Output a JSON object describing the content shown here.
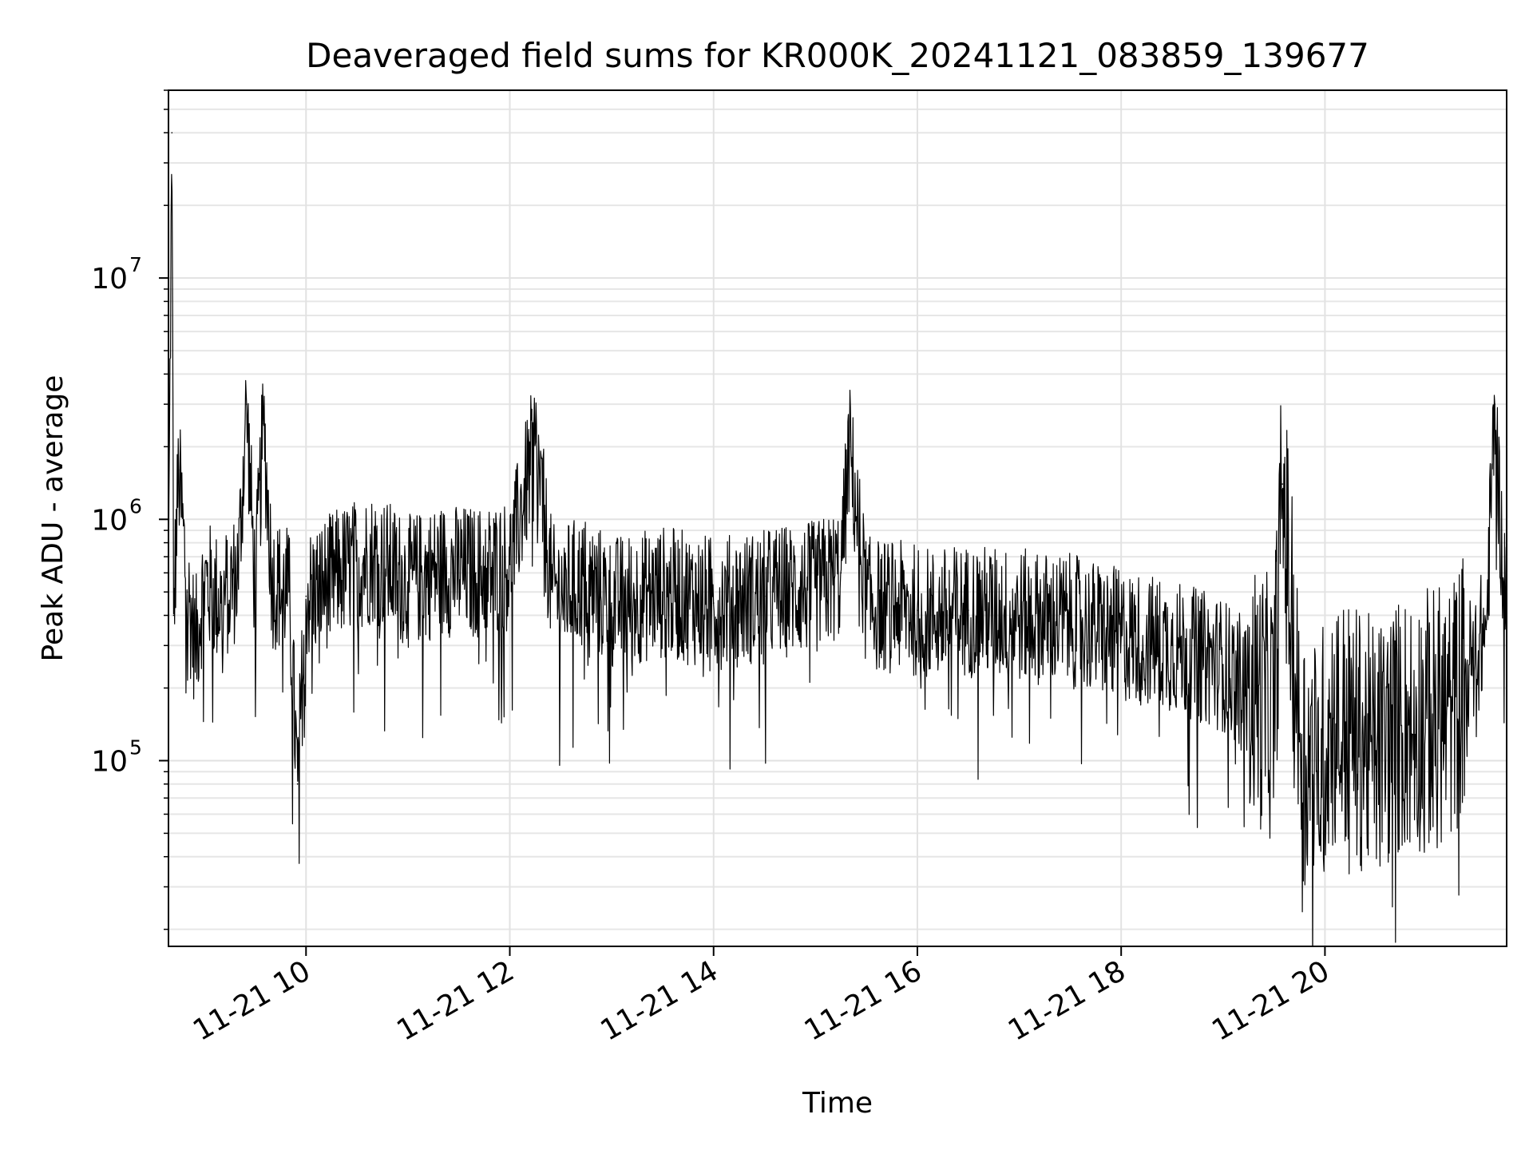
{
  "chart_data": {
    "type": "line",
    "title": "Deaveraged field sums for KR000K_20241121_083859_139677",
    "xlabel": "Time",
    "ylabel": "Peak ADU - average",
    "y_scale": "log",
    "grid": true,
    "legend": "none",
    "x_range": [
      "2024-11-21 08:39",
      "2024-11-21 21:47"
    ],
    "ylim": [
      17000,
      60000000
    ],
    "x_ticks": [
      {
        "t": "2024-11-21 10:00",
        "label": "11-21 10"
      },
      {
        "t": "2024-11-21 12:00",
        "label": "11-21 12"
      },
      {
        "t": "2024-11-21 14:00",
        "label": "11-21 14"
      },
      {
        "t": "2024-11-21 16:00",
        "label": "11-21 16"
      },
      {
        "t": "2024-11-21 18:00",
        "label": "11-21 18"
      },
      {
        "t": "2024-11-21 20:00",
        "label": "11-21 20"
      }
    ],
    "y_ticks": [
      {
        "value": 100000,
        "base": "10",
        "exp": "5"
      },
      {
        "value": 1000000,
        "base": "10",
        "exp": "6"
      },
      {
        "value": 10000000,
        "base": "10",
        "exp": "7"
      }
    ],
    "series": [
      {
        "color": "#000000",
        "x": [
          "2024-11-21 08:39",
          "2024-11-21 08:41",
          "2024-11-21 08:42",
          "2024-11-21 08:45",
          "2024-11-21 08:50",
          "2024-11-21 08:55",
          "2024-11-21 09:00",
          "2024-11-21 09:10",
          "2024-11-21 09:20",
          "2024-11-21 09:25",
          "2024-11-21 09:30",
          "2024-11-21 09:35",
          "2024-11-21 09:40",
          "2024-11-21 09:50",
          "2024-11-21 09:55",
          "2024-11-21 10:00",
          "2024-11-21 10:20",
          "2024-11-21 10:40",
          "2024-11-21 11:00",
          "2024-11-21 11:20",
          "2024-11-21 11:40",
          "2024-11-21 12:00",
          "2024-11-21 12:15",
          "2024-11-21 12:25",
          "2024-11-21 12:45",
          "2024-11-21 13:00",
          "2024-11-21 13:30",
          "2024-11-21 14:00",
          "2024-11-21 14:30",
          "2024-11-21 14:35",
          "2024-11-21 15:00",
          "2024-11-21 15:15",
          "2024-11-21 15:20",
          "2024-11-21 15:30",
          "2024-11-21 16:00",
          "2024-11-21 16:10",
          "2024-11-21 16:30",
          "2024-11-21 17:00",
          "2024-11-21 17:30",
          "2024-11-21 18:00",
          "2024-11-21 18:30",
          "2024-11-21 19:00",
          "2024-11-21 19:15",
          "2024-11-21 19:30",
          "2024-11-21 19:35",
          "2024-11-21 19:45",
          "2024-11-21 19:55",
          "2024-11-21 20:05",
          "2024-11-21 20:15",
          "2024-11-21 20:30",
          "2024-11-21 20:45",
          "2024-11-21 21:00",
          "2024-11-21 21:15",
          "2024-11-21 21:25",
          "2024-11-21 21:35",
          "2024-11-21 21:40",
          "2024-11-21 21:45"
        ],
        "values": [
          500000,
          40000000,
          400000,
          1600000,
          500000,
          300000,
          550000,
          450000,
          600000,
          3000000,
          500000,
          2500000,
          550000,
          500000,
          80000,
          480000,
          600000,
          700000,
          550000,
          620000,
          600000,
          650000,
          2100000,
          500000,
          550000,
          450000,
          500000,
          450000,
          480000,
          500000,
          520000,
          600000,
          2000000,
          450000,
          420000,
          400000,
          420000,
          400000,
          380000,
          330000,
          300000,
          250000,
          200000,
          160000,
          1400000,
          120000,
          90000,
          150000,
          130000,
          110000,
          140000,
          150000,
          160000,
          250000,
          350000,
          3000000,
          550000
        ]
      }
    ]
  }
}
